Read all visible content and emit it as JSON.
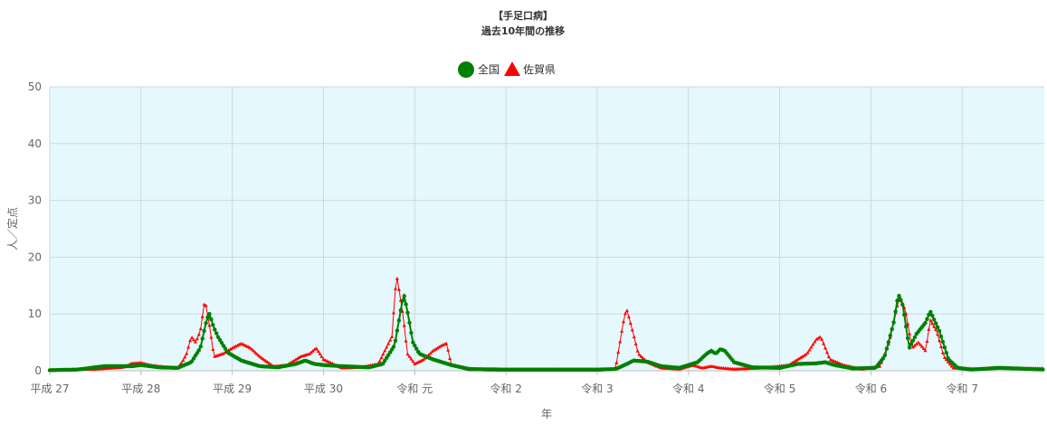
{
  "chart_data": {
    "type": "line",
    "title": "【手足口病】",
    "subtitle": "過去10年間の推移",
    "ylabel": "人／定点",
    "xlabel": "年",
    "ylim": [
      0,
      50
    ],
    "y_ticks": [
      "0",
      "10",
      "20",
      "30",
      "40",
      "50"
    ],
    "x_range": [
      0,
      10.9
    ],
    "categories": [
      "平成 27",
      "平成 28",
      "平成 29",
      "平成 30",
      "令和 元",
      "令和 2",
      "令和 3",
      "令和 4",
      "令和 5",
      "令和 6",
      "令和 7"
    ],
    "grid": true,
    "plot_background": "#e5f8fd",
    "legend_position": "top",
    "series": [
      {
        "name": "全国",
        "color": "#008000",
        "marker": "circle",
        "keypoints": [
          [
            0,
            0.1
          ],
          [
            0.3,
            0.2
          ],
          [
            0.6,
            0.8
          ],
          [
            0.9,
            0.8
          ],
          [
            1.0,
            1.0
          ],
          [
            1.2,
            0.6
          ],
          [
            1.4,
            0.5
          ],
          [
            1.55,
            1.5
          ],
          [
            1.65,
            4.0
          ],
          [
            1.72,
            9.0
          ],
          [
            1.75,
            10.0
          ],
          [
            1.8,
            7.5
          ],
          [
            1.85,
            5.8
          ],
          [
            1.95,
            3.2
          ],
          [
            2.1,
            1.8
          ],
          [
            2.3,
            0.8
          ],
          [
            2.5,
            0.6
          ],
          [
            2.7,
            1.2
          ],
          [
            2.8,
            1.8
          ],
          [
            2.9,
            1.2
          ],
          [
            3.0,
            1.0
          ],
          [
            3.2,
            0.8
          ],
          [
            3.5,
            0.6
          ],
          [
            3.65,
            1.2
          ],
          [
            3.78,
            4.5
          ],
          [
            3.85,
            11.0
          ],
          [
            3.88,
            13.5
          ],
          [
            3.92,
            10.5
          ],
          [
            3.98,
            5.0
          ],
          [
            4.05,
            3.0
          ],
          [
            4.2,
            2.0
          ],
          [
            4.4,
            1.0
          ],
          [
            4.6,
            0.3
          ],
          [
            5.0,
            0.2
          ],
          [
            6.0,
            0.2
          ],
          [
            6.2,
            0.3
          ],
          [
            6.3,
            1.0
          ],
          [
            6.4,
            1.8
          ],
          [
            6.55,
            1.6
          ],
          [
            6.7,
            0.8
          ],
          [
            6.9,
            0.5
          ],
          [
            7.1,
            1.5
          ],
          [
            7.2,
            3.0
          ],
          [
            7.25,
            3.5
          ],
          [
            7.3,
            3.0
          ],
          [
            7.35,
            3.8
          ],
          [
            7.4,
            3.5
          ],
          [
            7.5,
            1.5
          ],
          [
            7.7,
            0.6
          ],
          [
            8.0,
            0.5
          ],
          [
            8.2,
            1.2
          ],
          [
            8.4,
            1.3
          ],
          [
            8.5,
            1.5
          ],
          [
            8.6,
            1.0
          ],
          [
            8.8,
            0.4
          ],
          [
            9.05,
            0.5
          ],
          [
            9.15,
            2.5
          ],
          [
            9.25,
            8.5
          ],
          [
            9.3,
            13.5
          ],
          [
            9.35,
            11.5
          ],
          [
            9.42,
            4.0
          ],
          [
            9.5,
            6.5
          ],
          [
            9.6,
            8.5
          ],
          [
            9.65,
            10.5
          ],
          [
            9.75,
            7.0
          ],
          [
            9.85,
            2.0
          ],
          [
            9.95,
            0.5
          ],
          [
            10.1,
            0.2
          ],
          [
            10.4,
            0.5
          ],
          [
            10.6,
            0.4
          ],
          [
            10.9,
            0.2
          ]
        ]
      },
      {
        "name": "佐賀県",
        "color": "#ff0000",
        "marker": "triangle",
        "keypoints": [
          [
            0,
            0.1
          ],
          [
            0.5,
            0.3
          ],
          [
            0.8,
            0.6
          ],
          [
            0.9,
            1.3
          ],
          [
            1.0,
            1.4
          ],
          [
            1.1,
            1.0
          ],
          [
            1.3,
            0.6
          ],
          [
            1.4,
            0.5
          ],
          [
            1.45,
            1.5
          ],
          [
            1.5,
            3.0
          ],
          [
            1.55,
            6.0
          ],
          [
            1.6,
            5.0
          ],
          [
            1.65,
            7.0
          ],
          [
            1.7,
            12.5
          ],
          [
            1.75,
            8.0
          ],
          [
            1.8,
            2.5
          ],
          [
            1.9,
            3.0
          ],
          [
            2.0,
            4.0
          ],
          [
            2.1,
            4.8
          ],
          [
            2.2,
            4.0
          ],
          [
            2.3,
            2.5
          ],
          [
            2.45,
            0.8
          ],
          [
            2.6,
            1.0
          ],
          [
            2.75,
            2.5
          ],
          [
            2.85,
            3.0
          ],
          [
            2.92,
            4.0
          ],
          [
            3.0,
            2.0
          ],
          [
            3.2,
            0.5
          ],
          [
            3.4,
            0.6
          ],
          [
            3.6,
            1.2
          ],
          [
            3.75,
            6.0
          ],
          [
            3.8,
            17.0
          ],
          [
            3.87,
            10.0
          ],
          [
            3.92,
            3.0
          ],
          [
            4.0,
            1.2
          ],
          [
            4.1,
            2.0
          ],
          [
            4.2,
            3.5
          ],
          [
            4.3,
            4.5
          ],
          [
            4.35,
            4.8
          ],
          [
            4.4,
            1.0
          ],
          [
            4.6,
            0.2
          ],
          [
            5.0,
            0.1
          ],
          [
            6.0,
            0.1
          ],
          [
            6.2,
            0.3
          ],
          [
            6.28,
            8.0
          ],
          [
            6.32,
            11.0
          ],
          [
            6.38,
            7.5
          ],
          [
            6.45,
            3.0
          ],
          [
            6.55,
            1.5
          ],
          [
            6.7,
            0.5
          ],
          [
            6.9,
            0.3
          ],
          [
            7.05,
            1.0
          ],
          [
            7.15,
            0.5
          ],
          [
            7.25,
            0.8
          ],
          [
            7.35,
            0.5
          ],
          [
            7.5,
            0.3
          ],
          [
            7.8,
            0.5
          ],
          [
            8.1,
            1.0
          ],
          [
            8.3,
            3.0
          ],
          [
            8.4,
            5.5
          ],
          [
            8.45,
            6.0
          ],
          [
            8.5,
            4.0
          ],
          [
            8.55,
            2.0
          ],
          [
            8.7,
            1.0
          ],
          [
            8.9,
            0.3
          ],
          [
            9.1,
            0.8
          ],
          [
            9.2,
            5.0
          ],
          [
            9.28,
            11.0
          ],
          [
            9.32,
            13.0
          ],
          [
            9.38,
            10.5
          ],
          [
            9.45,
            4.0
          ],
          [
            9.52,
            5.0
          ],
          [
            9.6,
            3.5
          ],
          [
            9.65,
            9.0
          ],
          [
            9.72,
            7.0
          ],
          [
            9.8,
            2.5
          ],
          [
            9.9,
            0.5
          ],
          [
            10.2,
            0.3
          ],
          [
            10.4,
            0.6
          ],
          [
            10.6,
            0.4
          ],
          [
            10.9,
            0.4
          ]
        ]
      }
    ]
  }
}
